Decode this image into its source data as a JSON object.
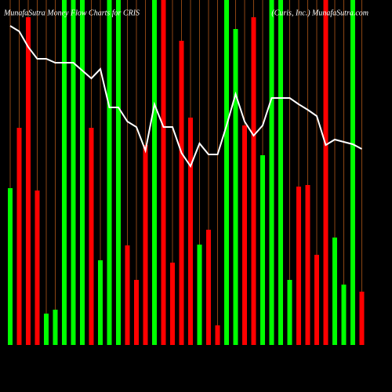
{
  "chart_data": {
    "type": "bar",
    "title": "MunafaSutra  Money Flow  Charts for CRIS",
    "subtitle": "(Curis, Inc.) MunafaSutra.com",
    "ylim": [
      0,
      440
    ],
    "bars": {
      "values": [
        200,
        277,
        418,
        197,
        40,
        45,
        440,
        440,
        440,
        277,
        108,
        440,
        440,
        127,
        83,
        255,
        440,
        440,
        105,
        388,
        290,
        128,
        147,
        25,
        440,
        403,
        280,
        418,
        242,
        440,
        440,
        83,
        202,
        204,
        115,
        440,
        137,
        77,
        440,
        68
      ],
      "colors": [
        "#00ff00",
        "#ff0000",
        "#ff0000",
        "#ff0000",
        "#00ff00",
        "#00ff00",
        "#00ff00",
        "#00ff00",
        "#00ff00",
        "#ff0000",
        "#00ff00",
        "#00ff00",
        "#00ff00",
        "#ff0000",
        "#ff0000",
        "#ff0000",
        "#00ff00",
        "#ff0000",
        "#ff0000",
        "#ff0000",
        "#ff0000",
        "#00ff00",
        "#ff0000",
        "#ff0000",
        "#00ff00",
        "#00ff00",
        "#ff0000",
        "#ff0000",
        "#00ff00",
        "#00ff00",
        "#00ff00",
        "#00ff00",
        "#ff0000",
        "#ff0000",
        "#ff0000",
        "#ff0000",
        "#00ff00",
        "#00ff00",
        "#00ff00",
        "#ff0000"
      ]
    },
    "line": {
      "color": "#ffffff",
      "values": [
        407,
        400,
        380,
        365,
        365,
        360,
        360,
        360,
        350,
        340,
        352,
        303,
        303,
        285,
        278,
        248,
        307,
        278,
        278,
        245,
        228,
        257,
        243,
        243,
        280,
        320,
        285,
        267,
        280,
        315,
        315,
        315,
        307,
        300,
        292,
        255,
        262,
        259,
        256,
        250
      ]
    },
    "gridline_color": "#8b4513"
  }
}
